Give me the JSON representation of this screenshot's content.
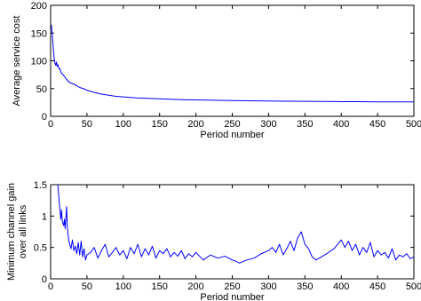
{
  "chart_data": [
    {
      "type": "line",
      "xlabel": "Period number",
      "ylabel": "Average service cost",
      "xlim": [
        0,
        500
      ],
      "ylim": [
        0,
        200
      ],
      "xticks": [
        0,
        50,
        100,
        150,
        200,
        250,
        300,
        350,
        400,
        450,
        500
      ],
      "yticks": [
        0,
        50,
        100,
        150,
        200
      ],
      "grid": false,
      "series": [
        {
          "color": "#0000ff",
          "x": [
            1,
            2,
            3,
            4,
            5,
            6,
            7,
            8,
            9,
            10,
            11,
            12,
            13,
            14,
            15,
            17,
            19,
            21,
            23,
            25,
            28,
            30,
            35,
            40,
            45,
            50,
            60,
            70,
            80,
            90,
            100,
            120,
            140,
            160,
            180,
            200,
            225,
            250,
            275,
            300,
            325,
            350,
            375,
            400,
            425,
            450,
            475,
            500
          ],
          "y": [
            165,
            150,
            135,
            118,
            103,
            96,
            92,
            98,
            90,
            93,
            88,
            85,
            86,
            80,
            78,
            75,
            72,
            68,
            65,
            62,
            60,
            59,
            56,
            52,
            50,
            47,
            43,
            40,
            38,
            36,
            35,
            33,
            32,
            31,
            30,
            29.5,
            29,
            28.5,
            28,
            27.5,
            27.3,
            27,
            26.8,
            26.5,
            26.3,
            26.1,
            26,
            26
          ]
        }
      ]
    },
    {
      "type": "line",
      "xlabel": "Period number",
      "ylabel": "Minimum channel gain over all links",
      "ylabel_lines": [
        "Minimum channel gain",
        "over all links"
      ],
      "xlim": [
        0,
        500
      ],
      "ylim": [
        0,
        1.5
      ],
      "xticks": [
        0,
        50,
        100,
        150,
        200,
        250,
        300,
        350,
        400,
        450,
        500
      ],
      "yticks": [
        0,
        0.5,
        1,
        1.5
      ],
      "ytick_labels": [
        "0",
        "0.5",
        "1",
        "1.5"
      ],
      "grid": false,
      "series": [
        {
          "color": "#0000ff",
          "x": [
            10,
            12,
            14,
            15,
            16,
            18,
            19,
            20,
            22,
            23,
            24,
            26,
            28,
            30,
            32,
            34,
            36,
            38,
            40,
            42,
            44,
            46,
            48,
            50,
            55,
            60,
            65,
            70,
            75,
            80,
            85,
            90,
            95,
            100,
            105,
            110,
            115,
            120,
            125,
            130,
            135,
            140,
            145,
            150,
            155,
            160,
            165,
            170,
            175,
            180,
            185,
            190,
            195,
            200,
            210,
            220,
            230,
            240,
            250,
            255,
            260,
            270,
            280,
            290,
            300,
            305,
            310,
            315,
            320,
            325,
            330,
            335,
            340,
            345,
            350,
            355,
            360,
            365,
            370,
            380,
            390,
            400,
            405,
            410,
            415,
            420,
            425,
            430,
            435,
            440,
            445,
            450,
            455,
            460,
            465,
            470,
            475,
            480,
            485,
            490,
            495,
            500
          ],
          "y": [
            1.5,
            1.2,
            0.95,
            1.1,
            0.92,
            0.85,
            0.95,
            0.8,
            1.15,
            0.82,
            0.7,
            0.55,
            0.48,
            0.62,
            0.45,
            0.52,
            0.4,
            0.58,
            0.38,
            0.6,
            0.35,
            0.48,
            0.3,
            0.38,
            0.42,
            0.5,
            0.33,
            0.45,
            0.55,
            0.35,
            0.42,
            0.5,
            0.38,
            0.45,
            0.32,
            0.5,
            0.4,
            0.55,
            0.35,
            0.48,
            0.38,
            0.52,
            0.33,
            0.45,
            0.4,
            0.48,
            0.35,
            0.42,
            0.36,
            0.45,
            0.32,
            0.4,
            0.35,
            0.42,
            0.3,
            0.38,
            0.33,
            0.36,
            0.3,
            0.28,
            0.25,
            0.3,
            0.33,
            0.4,
            0.45,
            0.5,
            0.42,
            0.55,
            0.38,
            0.48,
            0.6,
            0.45,
            0.65,
            0.75,
            0.55,
            0.48,
            0.35,
            0.3,
            0.33,
            0.4,
            0.48,
            0.62,
            0.5,
            0.6,
            0.45,
            0.55,
            0.38,
            0.5,
            0.42,
            0.58,
            0.35,
            0.45,
            0.38,
            0.42,
            0.33,
            0.48,
            0.3,
            0.38,
            0.35,
            0.4,
            0.32,
            0.35
          ]
        }
      ]
    }
  ]
}
